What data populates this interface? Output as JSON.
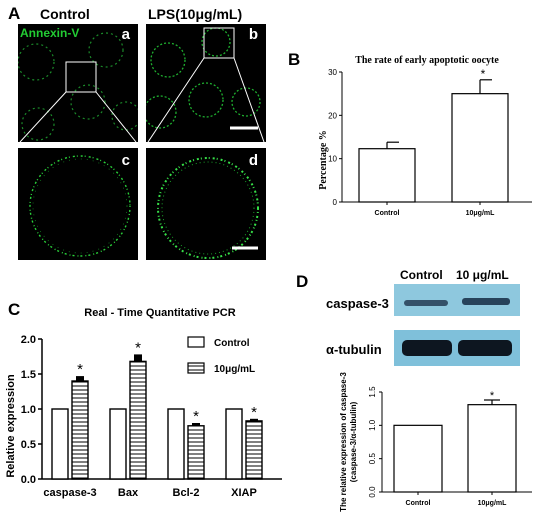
{
  "panelA": {
    "letter": "A",
    "col_headers": [
      "Control",
      "LPS(10μg/mL)"
    ],
    "stain_label": "Annexin-V",
    "sub_letters": [
      "a",
      "b",
      "c",
      "d"
    ],
    "colors": {
      "stain": "#22cc33",
      "background": "#000000"
    }
  },
  "panelB": {
    "letter": "B",
    "chart_data": {
      "type": "bar",
      "title": "The rate of  early apoptotic oocyte",
      "ylabel": "Percentage %",
      "categories": [
        "Control",
        "10μg/mL"
      ],
      "values": [
        12.3,
        25.0
      ],
      "errors": [
        1.5,
        3.2
      ],
      "ylim": [
        0,
        30
      ],
      "yticks": [
        0,
        10,
        20,
        30
      ],
      "significance": [
        "",
        "*"
      ]
    }
  },
  "panelC": {
    "letter": "C",
    "chart_data": {
      "type": "bar",
      "title": "Real - Time Quantitative PCR",
      "ylabel": "Relative  expression",
      "categories": [
        "caspase-3",
        "Bax",
        "Bcl-2",
        "XIAP"
      ],
      "series": [
        {
          "name": "Control",
          "values": [
            1.0,
            1.0,
            1.0,
            1.0
          ],
          "errors": [
            0,
            0,
            0,
            0
          ]
        },
        {
          "name": "10μg/mL",
          "values": [
            1.4,
            1.68,
            0.76,
            0.83
          ],
          "errors": [
            0.07,
            0.1,
            0.04,
            0.03
          ]
        }
      ],
      "ylim": [
        0,
        2.0
      ],
      "yticks": [
        "0.0",
        "0.5",
        "1.0",
        "1.5",
        "2.0"
      ],
      "significance": [
        "*",
        "*",
        "*",
        "*"
      ],
      "legend_position": "top-right"
    }
  },
  "panelD": {
    "letter": "D",
    "blot_headers": [
      "Control",
      "10 μg/mL"
    ],
    "blot_rows": [
      "caspase-3",
      "α-tubulin"
    ],
    "chart_data": {
      "type": "bar",
      "ylabel": "The relative expression of caspase-3",
      "ylabel2": "(caspase-3/α-tubulin)",
      "categories": [
        "Control",
        "10μg/mL"
      ],
      "values": [
        1.0,
        1.31
      ],
      "errors": [
        0,
        0.07
      ],
      "ylim": [
        0,
        1.5
      ],
      "yticks": [
        "0.0",
        "0.5",
        "1.0",
        "1.5"
      ],
      "significance": [
        "",
        "*"
      ]
    }
  }
}
